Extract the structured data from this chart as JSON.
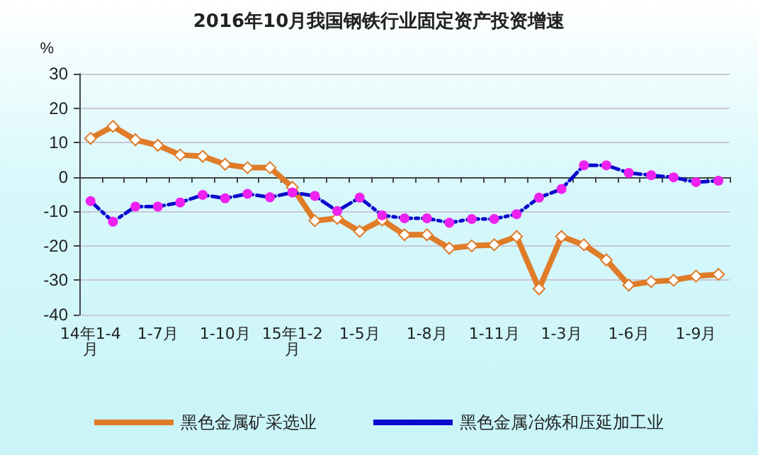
{
  "chart_data": {
    "type": "line",
    "title": "2016年10月我国钢铁行业固定资产投资增速",
    "ylabel": "%",
    "categories": [
      "14年1-4月",
      null,
      null,
      "1-7月",
      null,
      null,
      "1-10月",
      null,
      null,
      "15年1-2月",
      null,
      null,
      "1-5月",
      null,
      null,
      "1-8月",
      null,
      null,
      "1-11月",
      null,
      null,
      "1-3月",
      null,
      null,
      "1-6月",
      null,
      null,
      "1-9月",
      null
    ],
    "series": [
      {
        "name": "黑色金属矿采选业",
        "color": "#e07b28",
        "marker": "diamond",
        "line_style": "solid",
        "values": [
          11.2,
          14.7,
          10.8,
          9.2,
          6.4,
          6.0,
          3.7,
          2.7,
          2.7,
          -3,
          -12.7,
          -12,
          -15.8,
          -12.5,
          -16.8,
          -16.8,
          -20.7,
          -20,
          -19.7,
          -17.3,
          -32.5,
          -17.3,
          -19.7,
          -24.1,
          -31.4,
          -30.4,
          -30,
          -28.8,
          -28.3
        ]
      },
      {
        "name": "黑色金属冶炼和压延加工业",
        "color": "#0a0acc",
        "colors": [
          "#ee22ee",
          "#ee22ee",
          "#ee22ee",
          "#ee22ee",
          "#ee22ee",
          "#ee22ee",
          "#ee22ee",
          "#ee22ee",
          "#ee22ee",
          "#ee22ee",
          "#ee22ee",
          "#ee22ee",
          "#ee22ee",
          "#ee22ee",
          "#ee22ee",
          "#ee22ee",
          "#ee22ee",
          "#ee22ee",
          "#ee22ee",
          "#ee22ee",
          "#ee22ee",
          "#ee22ee",
          "#ee22ee",
          "#ee22ee",
          "#ee22ee",
          "#ee22ee",
          "#ee22ee",
          "#ee22ee",
          "#ee22ee"
        ],
        "marker": "circle",
        "line_style": "dashed",
        "values": [
          -7,
          -13,
          -8.6,
          -8.6,
          -7.4,
          -5.2,
          -6.2,
          -4.9,
          -5.9,
          -4.5,
          -5.5,
          -9.9,
          -6,
          -11.1,
          -12,
          -12,
          -13.3,
          -12.2,
          -12.2,
          -10.8,
          -6,
          -3.5,
          3.4,
          3.4,
          1.2,
          0.5,
          -0.1,
          -1.5,
          -1.1
        ]
      }
    ],
    "ylim": [
      -40,
      30
    ],
    "yticks": [
      -40,
      -30,
      -20,
      -10,
      0,
      10,
      20,
      30
    ],
    "grid": "y",
    "legend": "bottom"
  }
}
